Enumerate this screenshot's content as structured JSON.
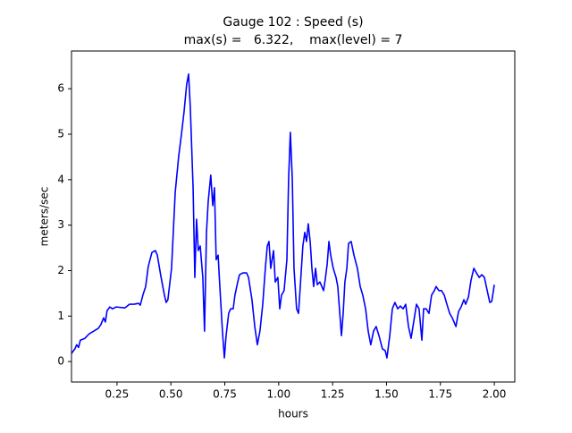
{
  "chart_data": {
    "type": "line",
    "title": "Gauge 102 : Speed (s)",
    "subtitle": "max(s) =   6.322,    max(level) = 7",
    "xlabel": "hours",
    "ylabel": "meters/sec",
    "xlim": [
      0.039,
      2.095
    ],
    "ylim": [
      -0.45,
      6.83
    ],
    "xticks": [
      0.25,
      {
        "value": 0.5,
        "label": "0.50"
      },
      0.75,
      {
        "value": 1.0,
        "label": "1.00"
      },
      1.25,
      {
        "value": 1.5,
        "label": "1.50"
      },
      1.75,
      {
        "value": 2.0,
        "label": "2.00"
      }
    ],
    "yticks": [
      0,
      1,
      2,
      3,
      4,
      5,
      6
    ],
    "series": [
      {
        "name": "speed",
        "color": "#0000ff",
        "x": [
          0.039,
          0.055,
          0.063,
          0.072,
          0.08,
          0.101,
          0.121,
          0.163,
          0.175,
          0.188,
          0.196,
          0.204,
          0.217,
          0.229,
          0.246,
          0.287,
          0.308,
          0.329,
          0.35,
          0.358,
          0.37,
          0.383,
          0.395,
          0.412,
          0.428,
          0.437,
          0.453,
          0.47,
          0.478,
          0.486,
          0.503,
          0.52,
          0.536,
          0.549,
          0.561,
          0.573,
          0.582,
          0.59,
          0.603,
          0.611,
          0.619,
          0.627,
          0.636,
          0.648,
          0.656,
          0.665,
          0.673,
          0.685,
          0.694,
          0.702,
          0.71,
          0.719,
          0.727,
          0.739,
          0.748,
          0.756,
          0.768,
          0.777,
          0.789,
          0.797,
          0.81,
          0.818,
          0.835,
          0.851,
          0.86,
          0.876,
          0.889,
          0.901,
          0.913,
          0.926,
          0.938,
          0.947,
          0.955,
          0.963,
          0.976,
          0.984,
          0.996,
          1.005,
          1.013,
          1.025,
          1.038,
          1.046,
          1.054,
          1.063,
          1.071,
          1.083,
          1.092,
          1.1,
          1.112,
          1.121,
          1.129,
          1.137,
          1.146,
          1.154,
          1.162,
          1.171,
          1.179,
          1.191,
          1.208,
          1.216,
          1.225,
          1.233,
          1.241,
          1.253,
          1.266,
          1.274,
          1.291,
          1.299,
          1.307,
          1.316,
          1.324,
          1.336,
          1.349,
          1.365,
          1.378,
          1.39,
          1.403,
          1.415,
          1.427,
          1.44,
          1.452,
          1.465,
          1.481,
          1.494,
          1.502,
          1.515,
          1.527,
          1.539,
          1.552,
          1.564,
          1.577,
          1.589,
          1.602,
          1.614,
          1.626,
          1.639,
          1.651,
          1.664,
          1.672,
          1.684,
          1.697,
          1.709,
          1.722,
          1.73,
          1.743,
          1.755,
          1.768,
          1.78,
          1.793,
          1.805,
          1.822,
          1.834,
          1.846,
          1.859,
          1.867,
          1.88,
          1.892,
          1.905,
          1.917,
          1.93,
          1.942,
          1.954,
          1.967,
          1.979,
          1.988,
          2.0
        ],
        "values": [
          0.18,
          0.28,
          0.37,
          0.31,
          0.47,
          0.51,
          0.61,
          0.73,
          0.81,
          0.96,
          0.87,
          1.12,
          1.2,
          1.16,
          1.2,
          1.18,
          1.26,
          1.26,
          1.28,
          1.24,
          1.46,
          1.65,
          2.09,
          2.4,
          2.44,
          2.34,
          1.89,
          1.46,
          1.3,
          1.36,
          2.05,
          3.72,
          4.51,
          5.0,
          5.49,
          6.09,
          6.322,
          5.59,
          3.82,
          1.85,
          3.13,
          2.44,
          2.54,
          1.85,
          0.67,
          2.84,
          3.52,
          4.1,
          3.43,
          3.82,
          2.24,
          2.34,
          1.65,
          0.67,
          0.08,
          0.57,
          1.06,
          1.16,
          1.16,
          1.46,
          1.75,
          1.91,
          1.95,
          1.95,
          1.85,
          1.36,
          0.77,
          0.37,
          0.67,
          1.26,
          2.05,
          2.54,
          2.64,
          2.05,
          2.44,
          1.75,
          1.85,
          1.16,
          1.46,
          1.56,
          2.24,
          4.02,
          5.04,
          4.02,
          2.05,
          1.16,
          1.06,
          1.65,
          2.54,
          2.84,
          2.64,
          3.03,
          2.64,
          2.05,
          1.65,
          2.05,
          1.69,
          1.75,
          1.56,
          1.81,
          2.15,
          2.64,
          2.34,
          2.05,
          1.85,
          1.65,
          0.57,
          1.06,
          1.75,
          2.05,
          2.6,
          2.64,
          2.34,
          2.05,
          1.65,
          1.46,
          1.16,
          0.67,
          0.37,
          0.67,
          0.77,
          0.57,
          0.28,
          0.24,
          0.08,
          0.57,
          1.16,
          1.3,
          1.16,
          1.22,
          1.16,
          1.26,
          0.77,
          0.51,
          0.87,
          1.26,
          1.16,
          0.47,
          1.16,
          1.16,
          1.06,
          1.46,
          1.56,
          1.65,
          1.56,
          1.56,
          1.46,
          1.26,
          1.06,
          0.96,
          0.77,
          1.1,
          1.2,
          1.36,
          1.26,
          1.42,
          1.79,
          2.05,
          1.95,
          1.85,
          1.91,
          1.85,
          1.56,
          1.3,
          1.32,
          1.69
        ]
      }
    ]
  }
}
